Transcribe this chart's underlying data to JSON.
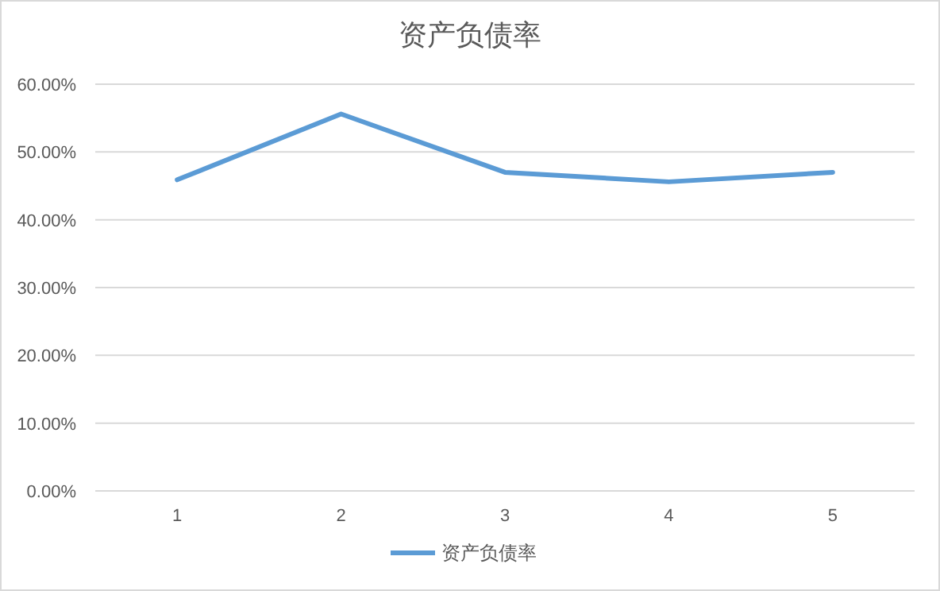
{
  "chart_data": {
    "type": "line",
    "title": "资产负债率",
    "categories": [
      "1",
      "2",
      "3",
      "4",
      "5"
    ],
    "series": [
      {
        "name": "资产负债率",
        "color": "#5b9bd5",
        "values": [
          45.9,
          55.6,
          47.0,
          45.6,
          47.0
        ]
      }
    ],
    "ylim": [
      0,
      60
    ],
    "yticks": [
      {
        "value": 0,
        "label": "0.00%"
      },
      {
        "value": 10,
        "label": "10.00%"
      },
      {
        "value": 20,
        "label": "20.00%"
      },
      {
        "value": 30,
        "label": "30.00%"
      },
      {
        "value": 40,
        "label": "40.00%"
      },
      {
        "value": 50,
        "label": "50.00%"
      },
      {
        "value": 60,
        "label": "60.00%"
      }
    ],
    "grid": "y",
    "legend": "bottom",
    "marker": "none",
    "line_style": "solid"
  }
}
